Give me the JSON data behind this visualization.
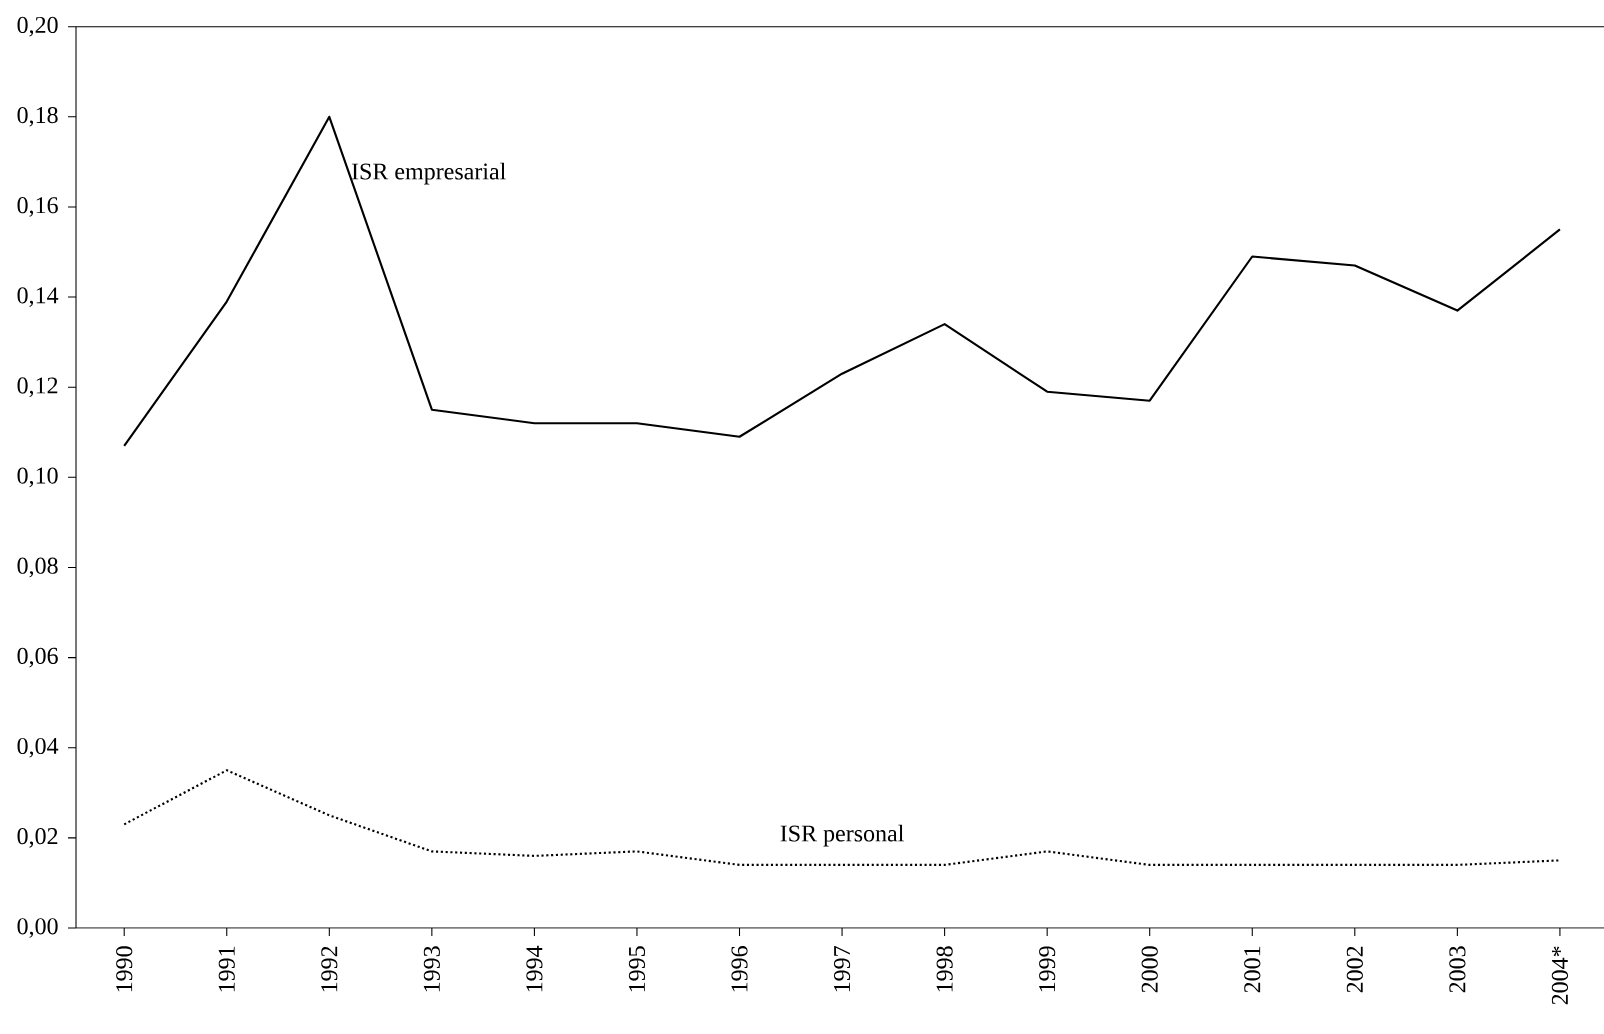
{
  "chart_data": {
    "type": "line",
    "categories": [
      "1990",
      "1991",
      "1992",
      "1993",
      "1994",
      "1995",
      "1996",
      "1997",
      "1998",
      "1999",
      "2000",
      "2001",
      "2002",
      "2003",
      "2004*"
    ],
    "series": [
      {
        "name": "ISR empresarial",
        "color": "#000000",
        "line_style": "solid",
        "values": [
          0.107,
          0.139,
          0.18,
          0.115,
          0.112,
          0.112,
          0.109,
          0.123,
          0.134,
          0.119,
          0.117,
          0.149,
          0.147,
          0.137,
          0.155
        ]
      },
      {
        "name": "ISR personal",
        "color": "#000000",
        "line_style": "dotted",
        "values": [
          0.023,
          0.035,
          0.025,
          0.017,
          0.016,
          0.017,
          0.014,
          0.014,
          0.014,
          0.017,
          0.014,
          0.014,
          0.014,
          0.014,
          0.015
        ]
      }
    ],
    "ylim": [
      0,
      0.2
    ],
    "yticks": [
      {
        "value": 0,
        "label": "0,00"
      },
      {
        "value": 0.02,
        "label": "0,02"
      },
      {
        "value": 0.04,
        "label": "0,04"
      },
      {
        "value": 0.06,
        "label": "0,06"
      },
      {
        "value": 0.08,
        "label": "0,08"
      },
      {
        "value": 0.1,
        "label": "0,10"
      },
      {
        "value": 0.12,
        "label": "0,12"
      },
      {
        "value": 0.14,
        "label": "0,14"
      },
      {
        "value": 0.16,
        "label": "0,16"
      },
      {
        "value": 0.18,
        "label": "0,18"
      },
      {
        "value": 0.2,
        "label": "0,20"
      }
    ],
    "grid": false,
    "legend": false,
    "marker": "none"
  }
}
